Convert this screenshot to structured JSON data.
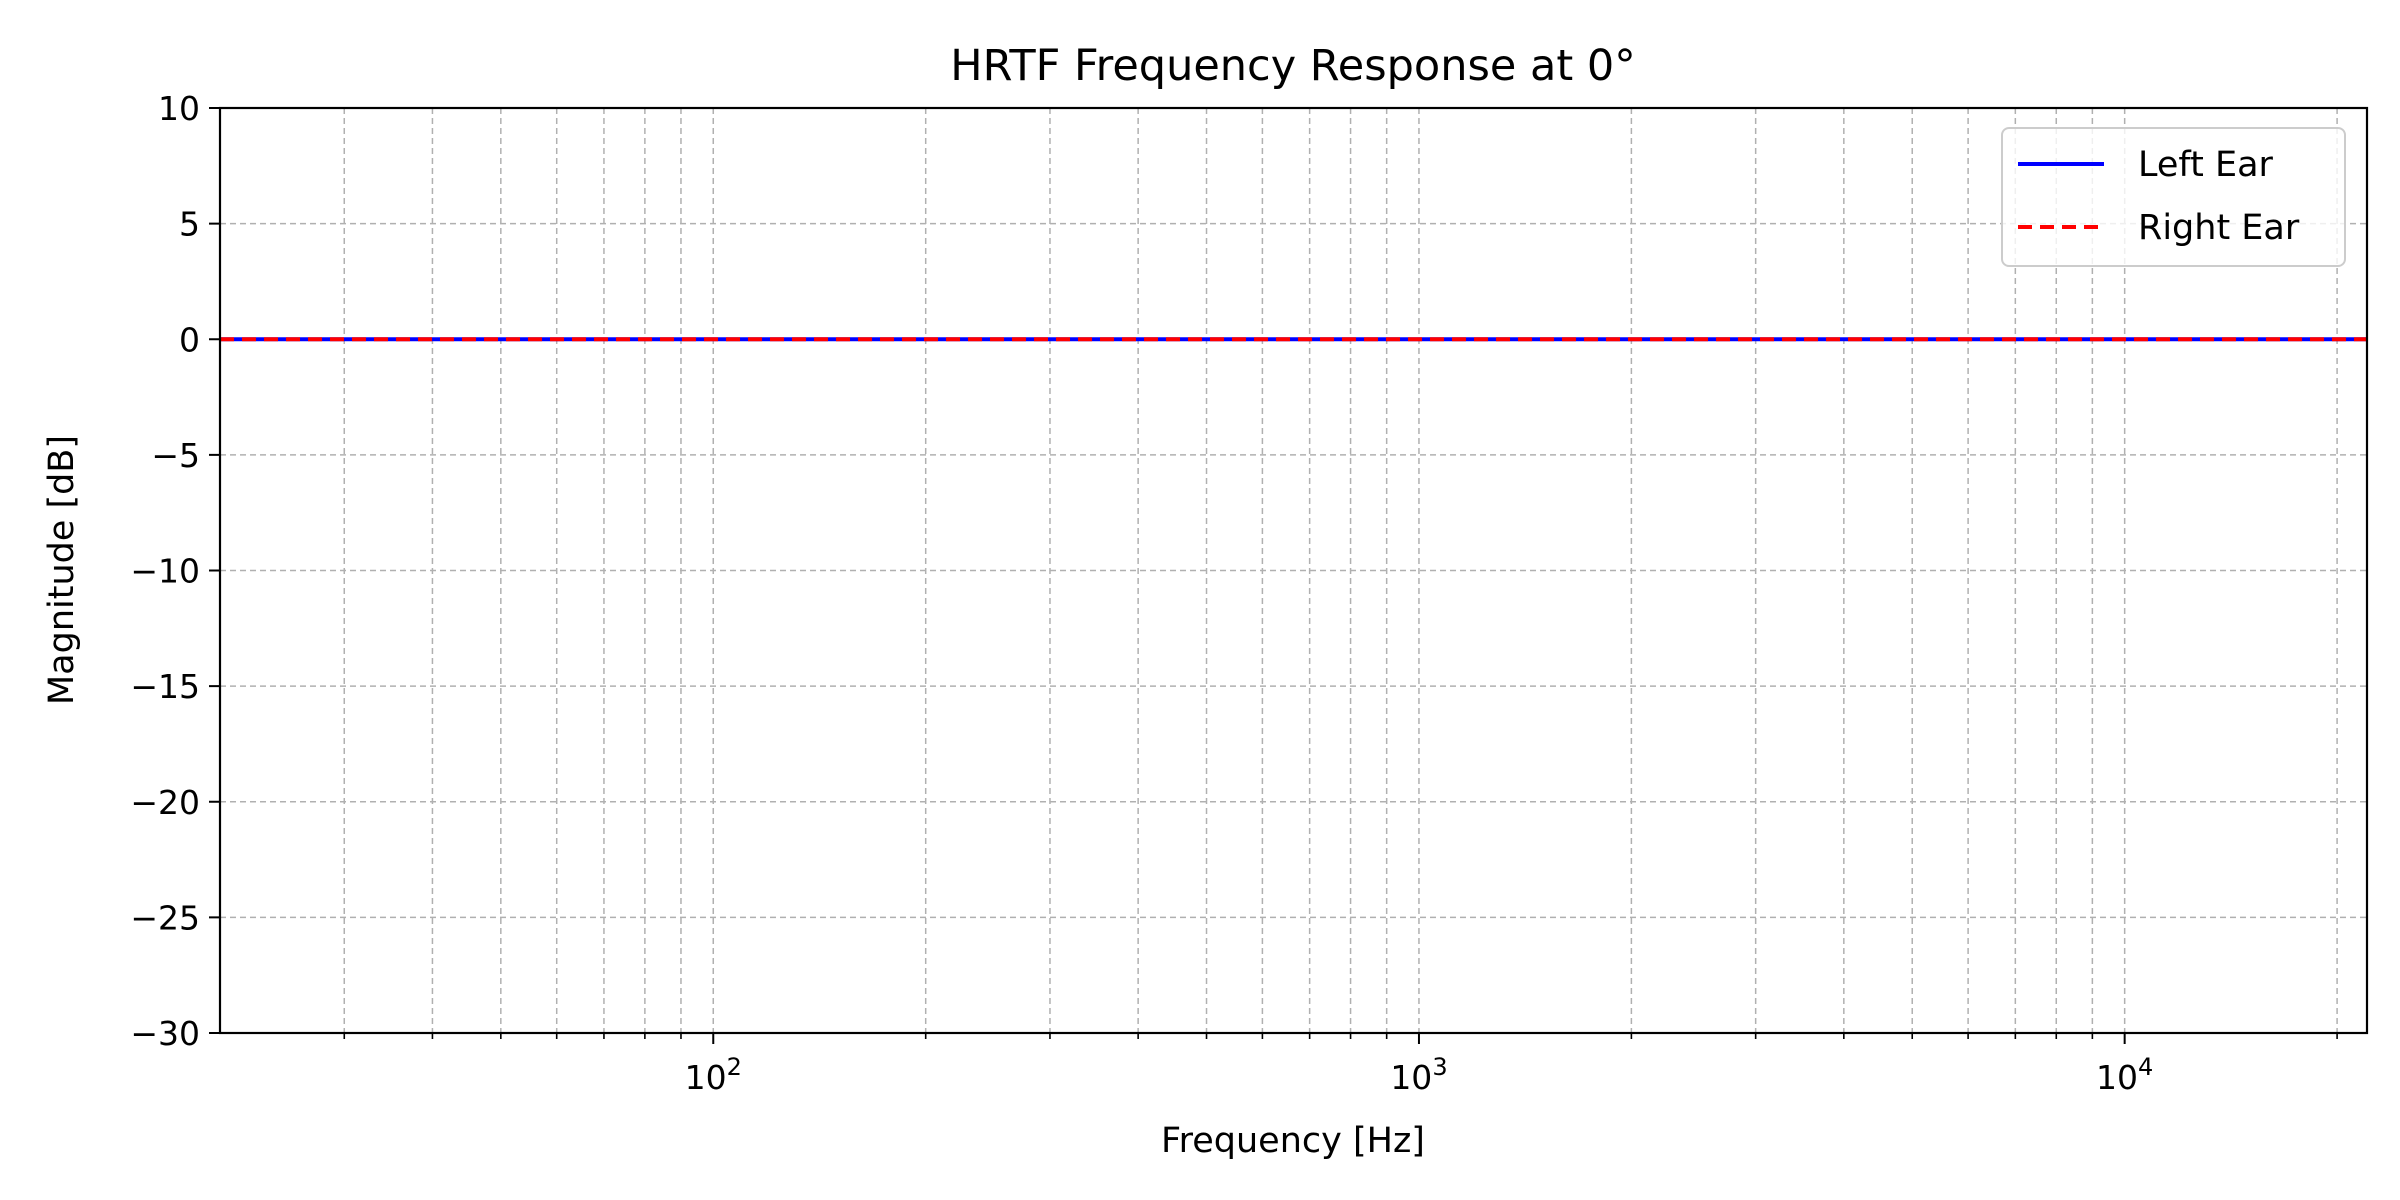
{
  "chart_data": {
    "type": "line",
    "title": "HRTF Frequency Response at 0°",
    "xlabel": "Frequency [Hz]",
    "ylabel": "Magnitude [dB]",
    "xscale": "log",
    "xlim": [
      20,
      22050
    ],
    "ylim": [
      -30,
      10
    ],
    "yticks": [
      10,
      5,
      0,
      -5,
      -10,
      -15,
      -20,
      -25,
      -30
    ],
    "ytick_labels": [
      "10",
      "5",
      "0",
      "−5",
      "−10",
      "−15",
      "−20",
      "−25",
      "−30"
    ],
    "xticks": [
      100,
      1000,
      10000
    ],
    "xtick_bases": [
      "10",
      "10",
      "10"
    ],
    "xtick_exponents": [
      "2",
      "3",
      "4"
    ],
    "grid": true,
    "legend_position": "top-right",
    "series": [
      {
        "name": "Left Ear",
        "color": "#0000ff",
        "style": "solid",
        "x": [
          20,
          22050
        ],
        "y": [
          0,
          0
        ]
      },
      {
        "name": "Right Ear",
        "color": "#ff0000",
        "style": "dashed",
        "x": [
          20,
          22050
        ],
        "y": [
          0,
          0
        ]
      }
    ]
  }
}
